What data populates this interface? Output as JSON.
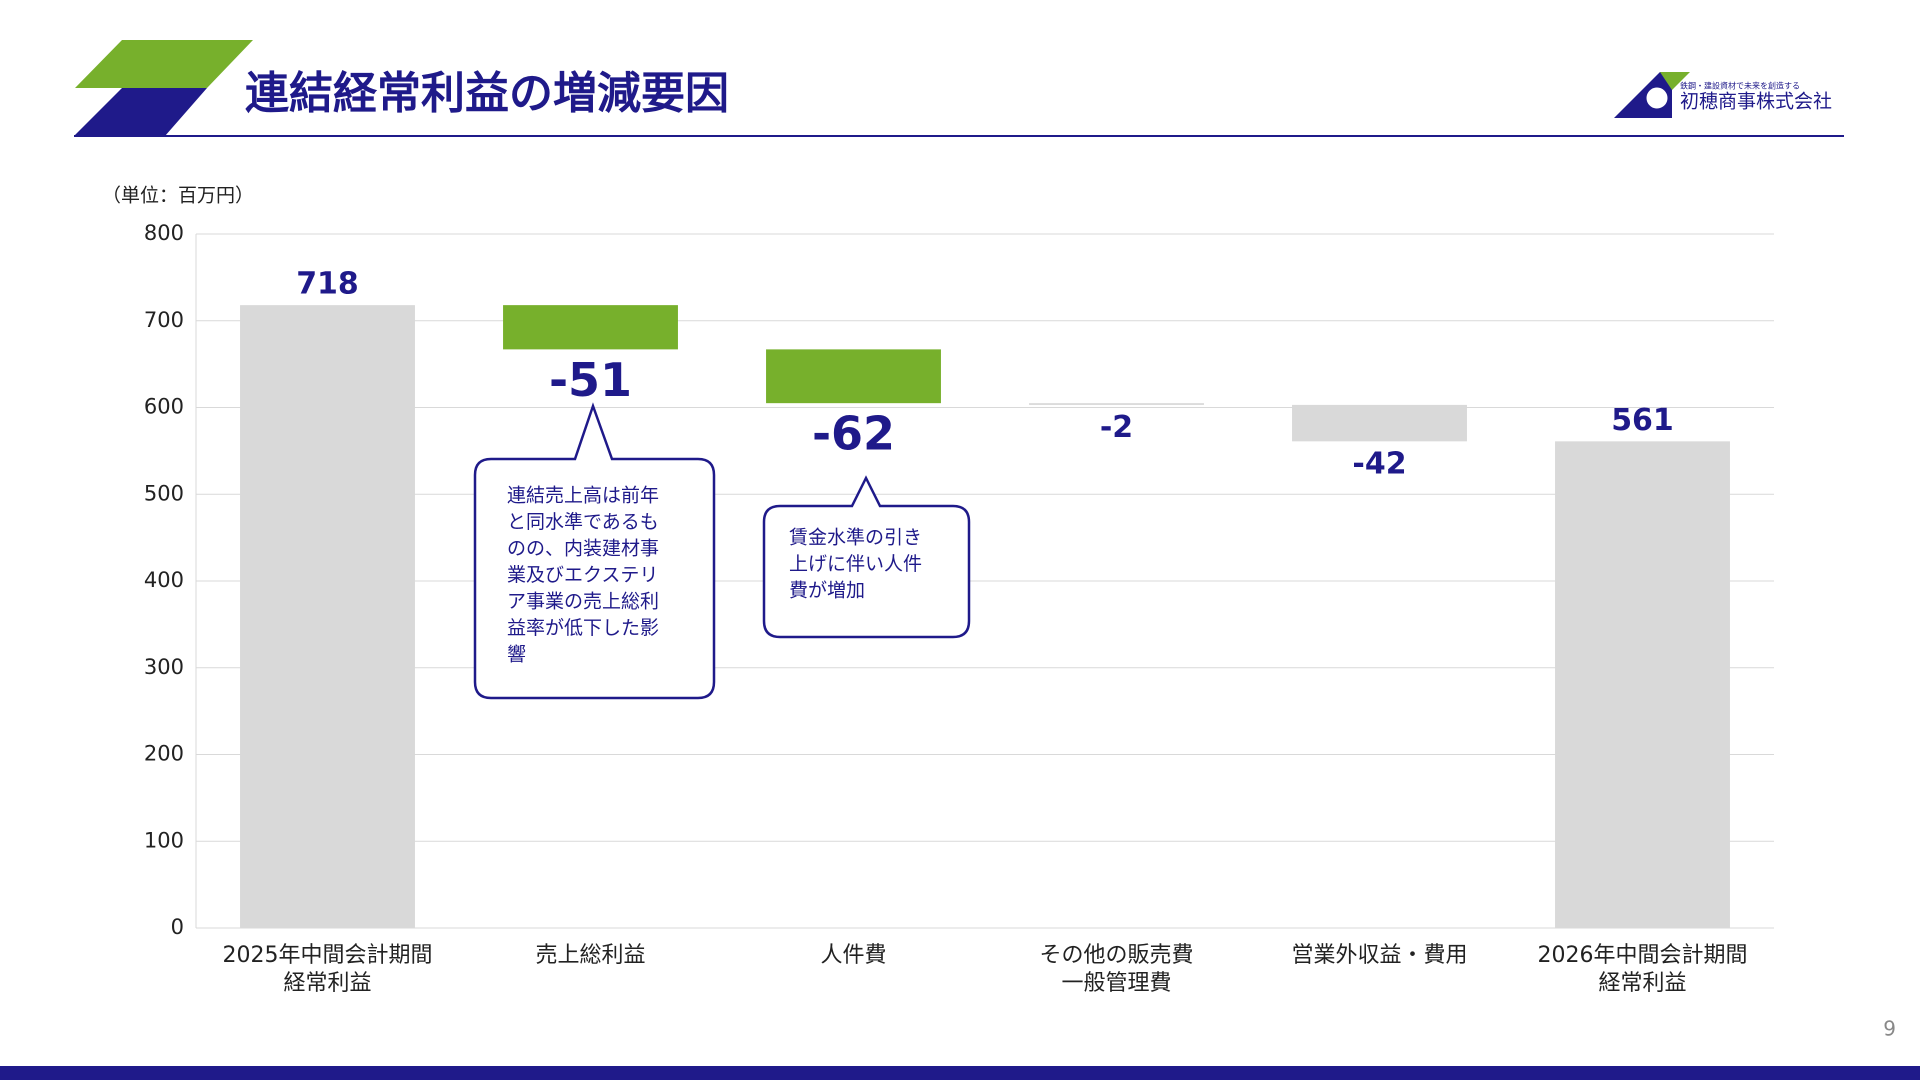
{
  "header": {
    "title": "連結経常利益の増減要因",
    "company": "初穂商事株式会社",
    "tagline": "鉄鋼・建設資材で未来を創造する"
  },
  "page_number": "9",
  "chart_data": {
    "type": "waterfall",
    "unit_label": "（単位：百万円）",
    "categories": [
      "2025年中間会計期間\n経常利益",
      "売上総利益",
      "人件費",
      "その他の販売費\n一般管理費",
      "営業外収益・費用",
      "2026年中間会計期間\n経常利益"
    ],
    "values": [
      718,
      -51,
      -62,
      -2,
      -42,
      561
    ],
    "colors": [
      "#d9d9d9",
      "#77b02c",
      "#77b02c",
      "#d9d9d9",
      "#d9d9d9",
      "#d9d9d9"
    ],
    "ylim": [
      0,
      800
    ],
    "yticks": [
      0,
      100,
      200,
      300,
      400,
      500,
      600,
      700,
      800
    ],
    "grid": true,
    "annotations": [
      {
        "lines": [
          "連結売上高は前年",
          "と同水準であるも",
          "のの、内装建材事",
          "業及びエクステリ",
          "ア事業の売上総利",
          "益率が低下した影",
          "響"
        ]
      },
      {
        "lines": [
          "賃金水準の引き",
          "上げに伴い人件",
          "費が増加"
        ]
      }
    ]
  }
}
